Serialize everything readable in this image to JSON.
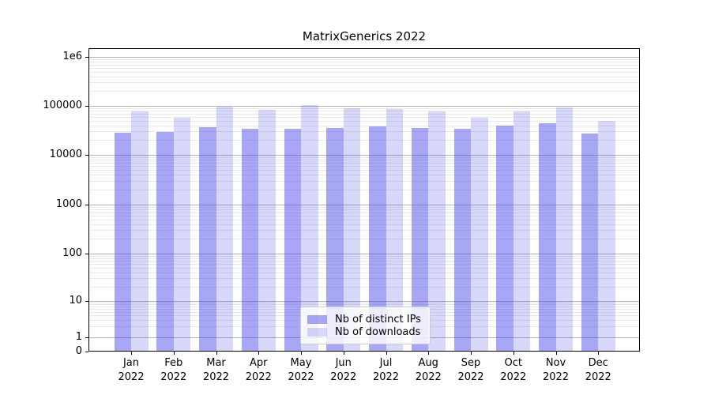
{
  "chart_data": {
    "type": "bar",
    "title": "MatrixGenerics 2022",
    "yscale": "symlog",
    "ylim": [
      0,
      1500000
    ],
    "xlabel": "",
    "ylabel": "",
    "grid": "horizontal major+minor",
    "legend_position": "lower center",
    "y_ticks": [
      0,
      1,
      10,
      100,
      1000,
      10000,
      100000,
      1000000
    ],
    "y_tick_labels": [
      "0",
      "1",
      "10",
      "100",
      "1000",
      "10000",
      "100000",
      "1e6"
    ],
    "categories": [
      "Jan 2022",
      "Feb 2022",
      "Mar 2022",
      "Apr 2022",
      "May 2022",
      "Jun 2022",
      "Jul 2022",
      "Aug 2022",
      "Sep 2022",
      "Oct 2022",
      "Nov 2022",
      "Dec 2022"
    ],
    "series": [
      {
        "name": "Nb of distinct IPs",
        "values": [
          28000,
          29000,
          37000,
          34000,
          34000,
          36000,
          38000,
          35000,
          34000,
          40000,
          44000,
          27000
        ]
      },
      {
        "name": "Nb of downloads",
        "values": [
          78000,
          58000,
          95000,
          84000,
          103000,
          90000,
          87000,
          76000,
          58000,
          76000,
          93000,
          50000
        ]
      }
    ]
  },
  "colors": {
    "bar_distinct_ips": "rgba(60,60,235,0.45)",
    "bar_downloads": "rgba(60,60,235,0.20)",
    "grid_major": "#b3b3b3",
    "grid_minor": "#e9e9e9",
    "axis": "#000000",
    "legend_border": "#cccccc",
    "legend_background": "rgba(255,255,255,0.8)",
    "text": "#000000"
  }
}
